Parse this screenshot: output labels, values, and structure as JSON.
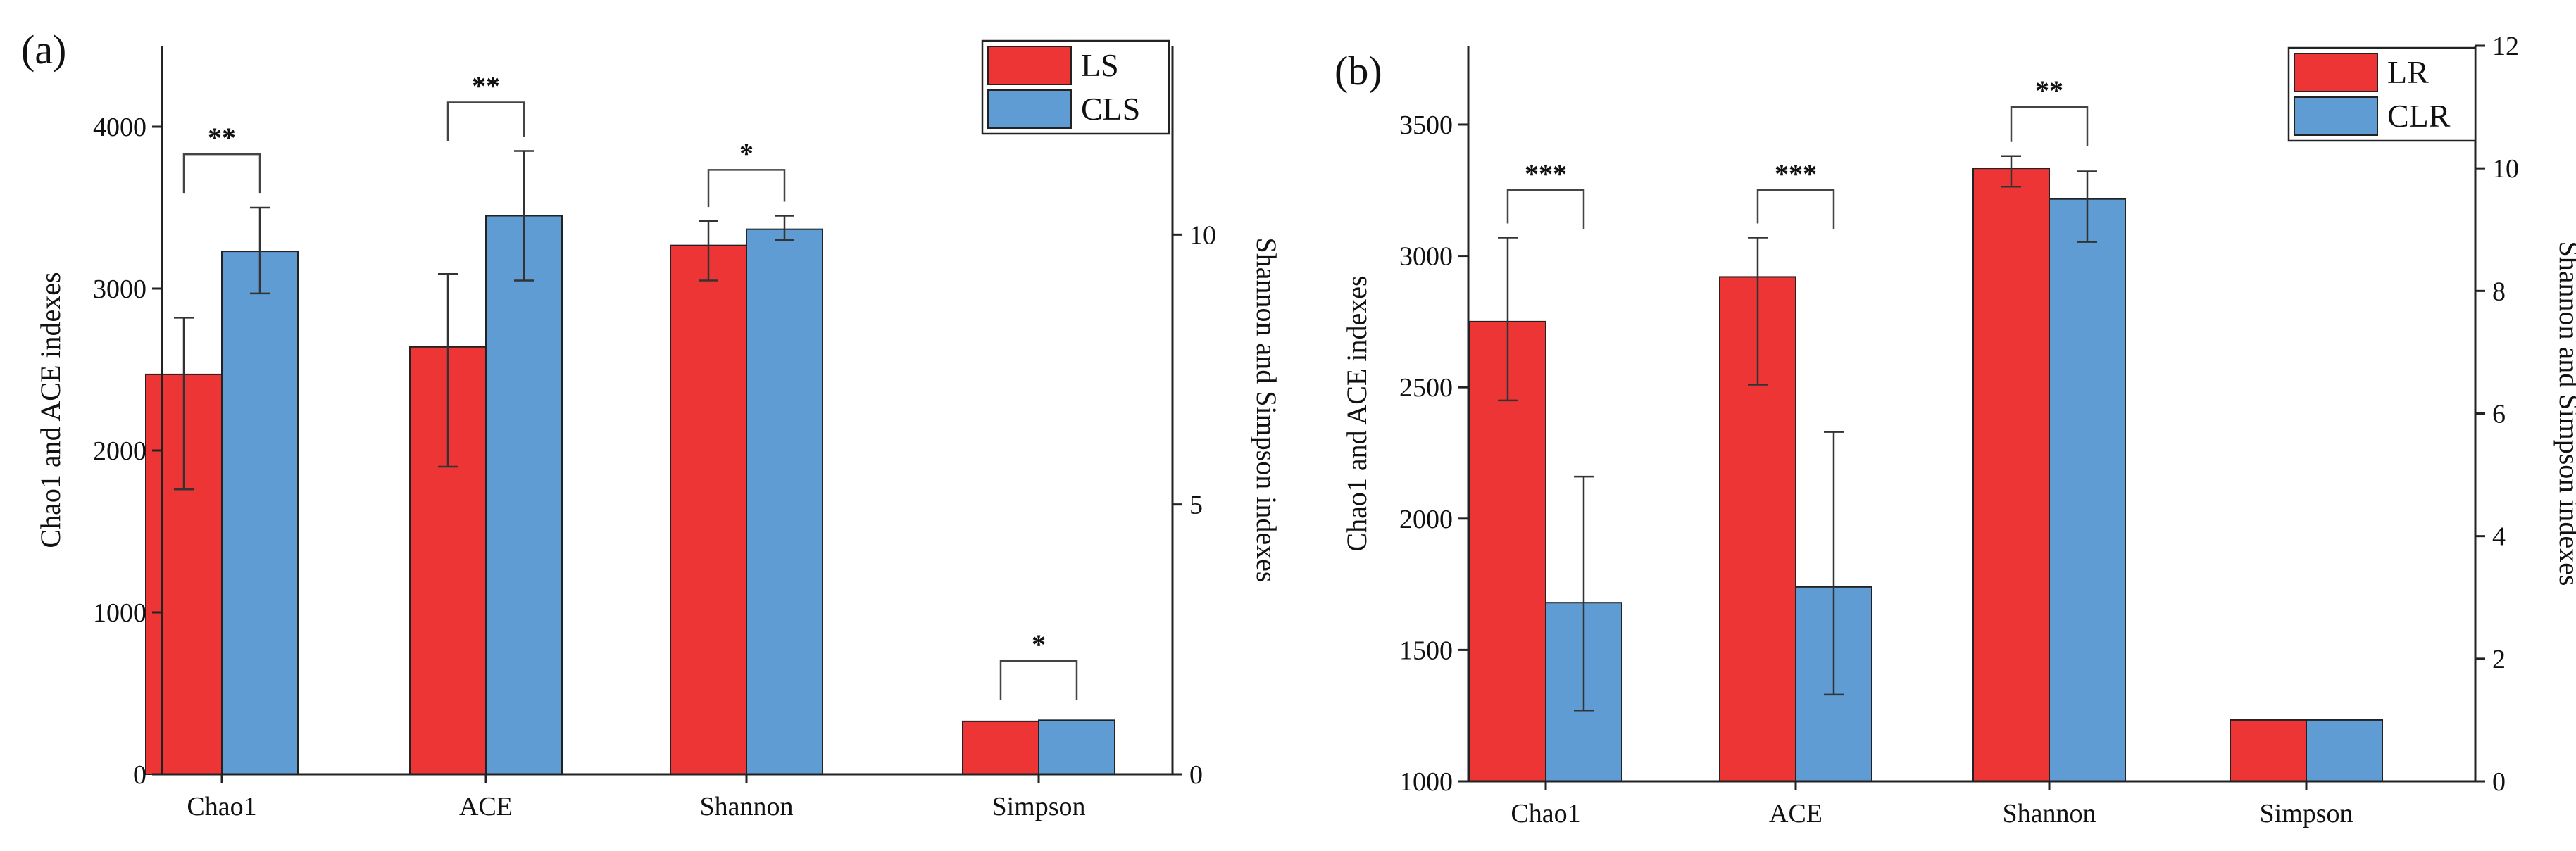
{
  "colors": {
    "ls": "#ee3535",
    "cls": "#5e9cd3",
    "lr": "#ee3535",
    "clr": "#5e9cd3"
  },
  "chart_data": [
    {
      "type": "bar",
      "panel_label": "(a)",
      "categories": [
        "Chao1",
        "ACE",
        "Shannon",
        "Simpson"
      ],
      "left_axis": {
        "label": "Chao1 and ACE indexes",
        "ylim": [
          0,
          4500
        ],
        "ticks": [
          "0",
          "1000",
          "2000",
          "3000",
          "4000"
        ]
      },
      "right_axis": {
        "label": "Shannon and Simpson indexes",
        "ylim": [
          0,
          13.5
        ],
        "ticks": [
          "0",
          "5",
          "10"
        ]
      },
      "series": [
        {
          "name": "LS",
          "color": "#ee3535",
          "values": [
            2470,
            2640,
            9.8,
            0.98
          ],
          "err_low": [
            1760,
            1900,
            9.15,
            null
          ],
          "err_high": [
            2820,
            3090,
            10.25,
            null
          ]
        },
        {
          "name": "CLS",
          "color": "#5e9cd3",
          "values": [
            3230,
            3450,
            10.1,
            1.0
          ],
          "err_low": [
            2970,
            3050,
            9.9,
            null
          ],
          "err_high": [
            3500,
            3850,
            10.35,
            null
          ]
        }
      ],
      "axis_for_category": [
        "left",
        "left",
        "right",
        "right"
      ],
      "significance": [
        {
          "category": 0,
          "label": "**",
          "level": 3830
        },
        {
          "category": 1,
          "label": "**",
          "level": 4150
        },
        {
          "category": 2,
          "label": "*",
          "level": 11.2
        },
        {
          "category": 3,
          "label": "*",
          "level": 2.1
        }
      ],
      "legend": [
        "LS",
        "CLS"
      ],
      "legend_position": "top-right"
    },
    {
      "type": "bar",
      "panel_label": "(b)",
      "categories": [
        "Chao1",
        "ACE",
        "Shannon",
        "Simpson"
      ],
      "left_axis": {
        "label": "Chao1 and ACE indexes",
        "ylim": [
          1000,
          3800
        ],
        "ticks": [
          "1000",
          "1500",
          "2000",
          "2500",
          "3000",
          "3500"
        ]
      },
      "right_axis": {
        "label": "Shannon and Simpson indexes",
        "ylim": [
          0,
          12
        ],
        "ticks": [
          "0",
          "2",
          "4",
          "6",
          "8",
          "10",
          "12"
        ]
      },
      "series": [
        {
          "name": "LR",
          "color": "#ee3535",
          "values": [
            2750,
            2920,
            10.0,
            1.0
          ],
          "err_low": [
            2450,
            2510,
            9.7,
            null
          ],
          "err_high": [
            3070,
            3070,
            10.2,
            null
          ]
        },
        {
          "name": "CLR",
          "color": "#5e9cd3",
          "values": [
            1680,
            1740,
            9.5,
            1.0
          ],
          "err_low": [
            1270,
            1330,
            8.8,
            null
          ],
          "err_high": [
            2160,
            2330,
            9.95,
            null
          ]
        }
      ],
      "axis_for_category": [
        "left",
        "left",
        "right",
        "right"
      ],
      "significance": [
        {
          "category": 0,
          "label": "***",
          "level": 3250
        },
        {
          "category": 1,
          "label": "***",
          "level": 3250
        },
        {
          "category": 2,
          "label": "**",
          "level": 11.0
        }
      ],
      "legend": [
        "LR",
        "CLR"
      ],
      "legend_position": "top-right"
    }
  ]
}
